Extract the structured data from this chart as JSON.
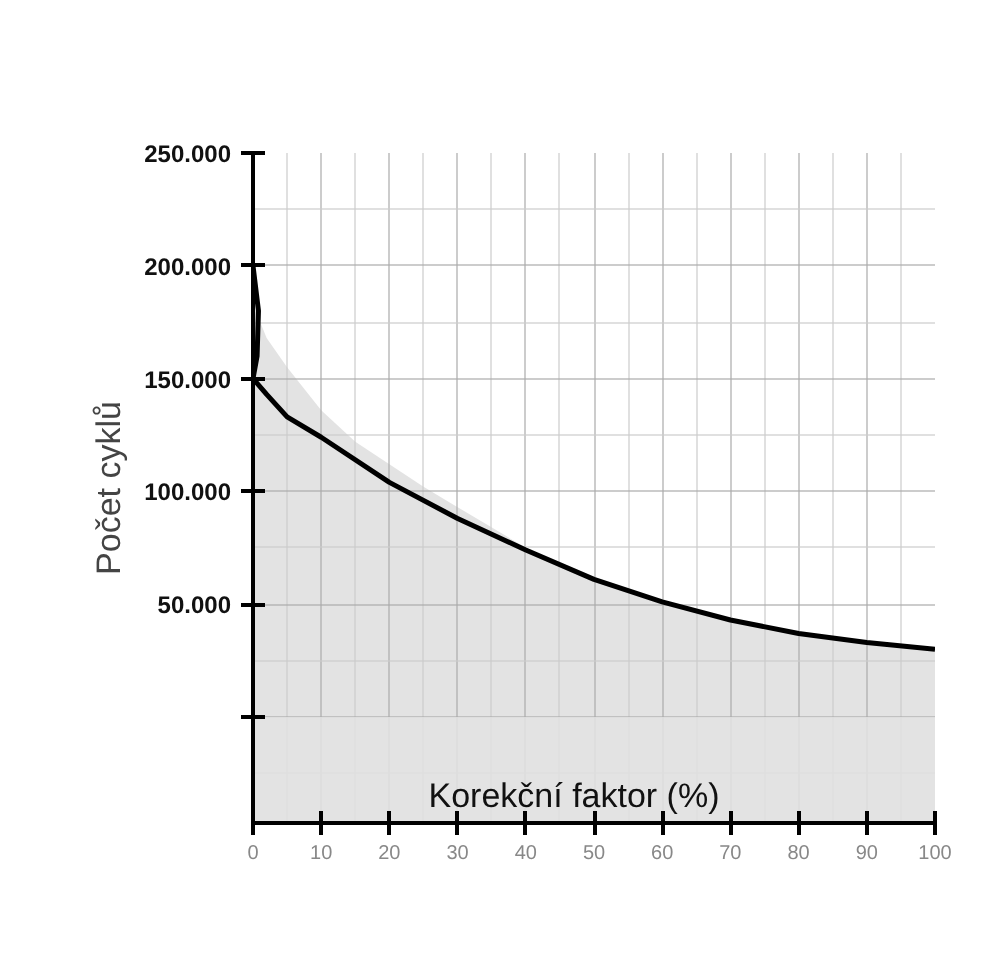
{
  "chart_data": {
    "type": "line",
    "xlabel": "Korekční faktor (%)",
    "ylabel": "Počet cyklů",
    "xlim": [
      0,
      100
    ],
    "ylim": [
      -47000,
      250000
    ],
    "xticks": [
      0,
      10,
      20,
      30,
      40,
      50,
      60,
      70,
      80,
      90,
      100
    ],
    "yticks": [
      {
        "value": 0,
        "label": null
      },
      {
        "value": 50000,
        "label": "50.000"
      },
      {
        "value": 100000,
        "label": "100.000"
      },
      {
        "value": 150000,
        "label": "150.000"
      },
      {
        "value": 200000,
        "label": "200.000"
      },
      {
        "value": 250000,
        "label": "250.000"
      }
    ],
    "grid": true,
    "bands": [
      {
        "axis": "y",
        "from": -47000,
        "to": 0,
        "color": "#e0e0e0"
      }
    ],
    "series": [
      {
        "type": "area",
        "color": "#e0e0e0",
        "x": [
          0,
          2,
          5,
          10,
          15,
          20,
          25,
          30,
          40,
          50,
          60,
          70,
          80,
          90,
          100
        ],
        "values": [
          183000,
          168000,
          155000,
          136000,
          122000,
          112000,
          102000,
          93000,
          75000,
          61000,
          51000,
          43000,
          37000,
          33000,
          30000
        ]
      },
      {
        "color": "#000000",
        "x": [
          0,
          0.8,
          0.6,
          0,
          2,
          5,
          10,
          20,
          30,
          40,
          50,
          60,
          70,
          80,
          90,
          100
        ],
        "values": [
          200000,
          180000,
          160000,
          150000,
          143000,
          133000,
          124000,
          104000,
          88000,
          74000,
          61000,
          51000,
          43000,
          37000,
          33000,
          30000
        ]
      }
    ]
  }
}
